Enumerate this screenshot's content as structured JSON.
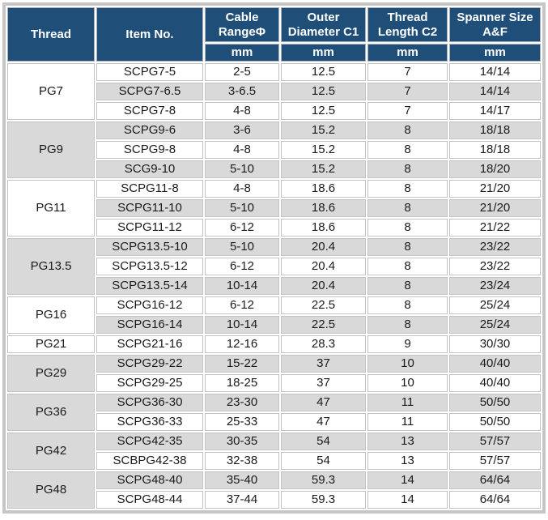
{
  "colors": {
    "header_bg": "#1F4E79",
    "header_text": "#FFFFFF",
    "row_bg": "#FFFFFF",
    "row_alt_bg": "#D9D9D9",
    "frame_border": "#C6C6C6",
    "body_text": "#1A1A1A"
  },
  "table": {
    "columns": [
      {
        "label": "Thread",
        "unit": null
      },
      {
        "label": "Item No.",
        "unit": null
      },
      {
        "label": "Cable RangeΦ",
        "unit": "mm"
      },
      {
        "label": "Outer Diameter C1",
        "unit": "mm"
      },
      {
        "label": "Thread Length C2",
        "unit": "mm"
      },
      {
        "label": "Spanner Size A&F",
        "unit": "mm"
      }
    ],
    "groups": [
      {
        "thread": "PG7",
        "rows": [
          {
            "item": "SCPG7-5",
            "cable": "2-5",
            "outer": "12.5",
            "length": "7",
            "spanner": "14/14"
          },
          {
            "item": "SCPG7-6.5",
            "cable": "3-6.5",
            "outer": "12.5",
            "length": "7",
            "spanner": "14/14"
          },
          {
            "item": "SCPG7-8",
            "cable": "4-8",
            "outer": "12.5",
            "length": "7",
            "spanner": "14/17"
          }
        ]
      },
      {
        "thread": "PG9",
        "rows": [
          {
            "item": "SCPG9-6",
            "cable": "3-6",
            "outer": "15.2",
            "length": "8",
            "spanner": "18/18"
          },
          {
            "item": "SCPG9-8",
            "cable": "4-8",
            "outer": "15.2",
            "length": "8",
            "spanner": "18/18"
          },
          {
            "item": "SCG9-10",
            "cable": "5-10",
            "outer": "15.2",
            "length": "8",
            "spanner": "18/20"
          }
        ]
      },
      {
        "thread": "PG11",
        "rows": [
          {
            "item": "SCPG11-8",
            "cable": "4-8",
            "outer": "18.6",
            "length": "8",
            "spanner": "21/20"
          },
          {
            "item": "SCPG11-10",
            "cable": "5-10",
            "outer": "18.6",
            "length": "8",
            "spanner": "21/20"
          },
          {
            "item": "SCPG11-12",
            "cable": "6-12",
            "outer": "18.6",
            "length": "8",
            "spanner": "21/22"
          }
        ]
      },
      {
        "thread": "PG13.5",
        "rows": [
          {
            "item": "SCPG13.5-10",
            "cable": "5-10",
            "outer": "20.4",
            "length": "8",
            "spanner": "23/22"
          },
          {
            "item": "SCPG13.5-12",
            "cable": "6-12",
            "outer": "20.4",
            "length": "8",
            "spanner": "23/22"
          },
          {
            "item": "SCPG13.5-14",
            "cable": "10-14",
            "outer": "20.4",
            "length": "8",
            "spanner": "23/24"
          }
        ]
      },
      {
        "thread": "PG16",
        "rows": [
          {
            "item": "SCPG16-12",
            "cable": "6-12",
            "outer": "22.5",
            "length": "8",
            "spanner": "25/24"
          },
          {
            "item": "SCPG16-14",
            "cable": "10-14",
            "outer": "22.5",
            "length": "8",
            "spanner": "25/24"
          }
        ]
      },
      {
        "thread": "PG21",
        "rows": [
          {
            "item": "SCPG21-16",
            "cable": "12-16",
            "outer": "28.3",
            "length": "9",
            "spanner": "30/30"
          }
        ]
      },
      {
        "thread": "PG29",
        "rows": [
          {
            "item": "SCPG29-22",
            "cable": "15-22",
            "outer": "37",
            "length": "10",
            "spanner": "40/40"
          },
          {
            "item": "SCPG29-25",
            "cable": "18-25",
            "outer": "37",
            "length": "10",
            "spanner": "40/40"
          }
        ]
      },
      {
        "thread": "PG36",
        "rows": [
          {
            "item": "SCPG36-30",
            "cable": "23-30",
            "outer": "47",
            "length": "11",
            "spanner": "50/50"
          },
          {
            "item": "SCPG36-33",
            "cable": "25-33",
            "outer": "47",
            "length": "11",
            "spanner": "50/50"
          }
        ]
      },
      {
        "thread": "PG42",
        "rows": [
          {
            "item": "SCPG42-35",
            "cable": "30-35",
            "outer": "54",
            "length": "13",
            "spanner": "57/57"
          },
          {
            "item": "SCBPG42-38",
            "cable": "32-38",
            "outer": "54",
            "length": "13",
            "spanner": "57/57"
          }
        ]
      },
      {
        "thread": "PG48",
        "rows": [
          {
            "item": "SCPG48-40",
            "cable": "35-40",
            "outer": "59.3",
            "length": "14",
            "spanner": "64/64"
          },
          {
            "item": "SCPG48-44",
            "cable": "37-44",
            "outer": "59.3",
            "length": "14",
            "spanner": "64/64"
          }
        ]
      }
    ]
  }
}
